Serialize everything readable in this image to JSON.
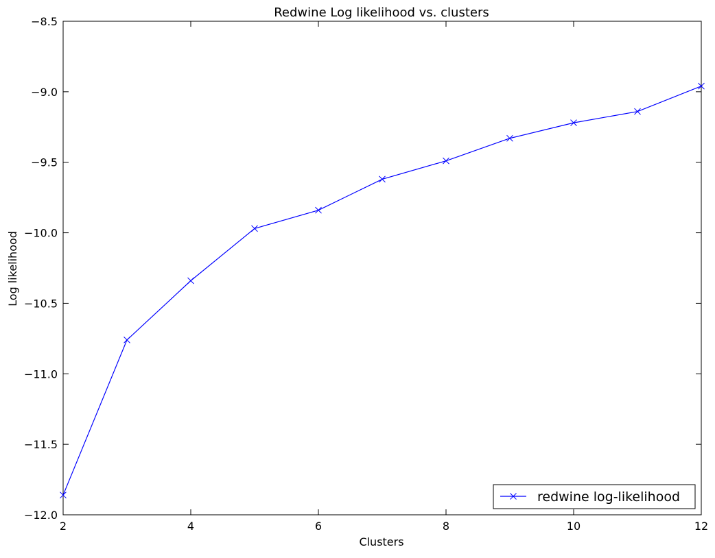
{
  "chart_data": {
    "type": "line",
    "title": "Redwine  Log likelihood vs. clusters",
    "xlabel": "Clusters",
    "ylabel": "Log likelihood",
    "xlim": [
      2,
      12
    ],
    "ylim": [
      -12.0,
      -8.5
    ],
    "xticks": [
      2,
      4,
      6,
      8,
      10,
      12
    ],
    "xtick_labels": [
      "2",
      "4",
      "6",
      "8",
      "10",
      "12"
    ],
    "yticks": [
      -12.0,
      -11.5,
      -11.0,
      -10.5,
      -10.0,
      -9.5,
      -9.0,
      -8.5
    ],
    "ytick_labels": [
      "−12.0",
      "−11.5",
      "−11.0",
      "−10.5",
      "−10.0",
      "−9.5",
      "−9.0",
      "−8.5"
    ],
    "grid": false,
    "legend_position": "lower-right",
    "series": [
      {
        "name": "redwine log-likelihood",
        "color": "#0000ff",
        "marker": "x",
        "x": [
          2,
          3,
          4,
          5,
          6,
          7,
          8,
          9,
          10,
          11,
          12
        ],
        "y": [
          -11.86,
          -10.76,
          -10.34,
          -9.97,
          -9.84,
          -9.62,
          -9.49,
          -9.33,
          -9.22,
          -9.14,
          -8.96
        ]
      }
    ]
  }
}
